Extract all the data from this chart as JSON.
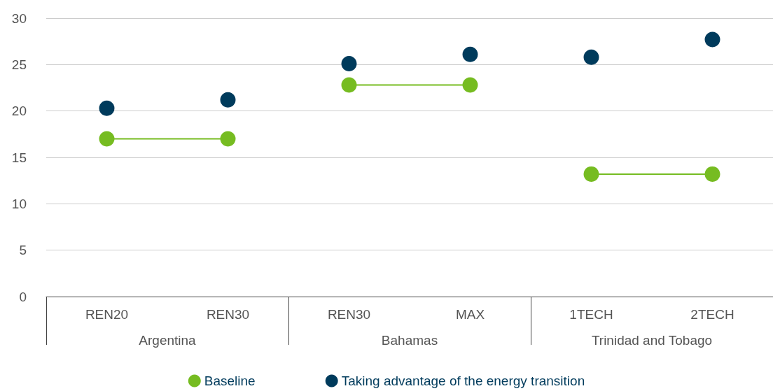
{
  "chart_data": {
    "type": "line",
    "categories": [
      "REN20",
      "REN30",
      "REN30",
      "MAX",
      "1TECH",
      "2TECH"
    ],
    "annotations": [
      "Argentina",
      "Bahamas",
      "Trinidad and Tobago"
    ],
    "series": [
      {
        "name": "Baseline",
        "color": "#76bc21",
        "values": [
          17.0,
          17.0,
          22.8,
          22.8,
          13.2,
          13.2
        ]
      },
      {
        "name": "Taking advantage of the energy transition",
        "type": "scatter",
        "color": "#003b5c",
        "values": [
          20.3,
          21.2,
          25.1,
          26.1,
          25.8,
          27.7
        ]
      }
    ],
    "ylim": [
      0,
      30
    ],
    "yticks": [
      0,
      5,
      10,
      15,
      20,
      25,
      30
    ],
    "grid": "y",
    "legend": "bottom",
    "marker": "circle"
  }
}
